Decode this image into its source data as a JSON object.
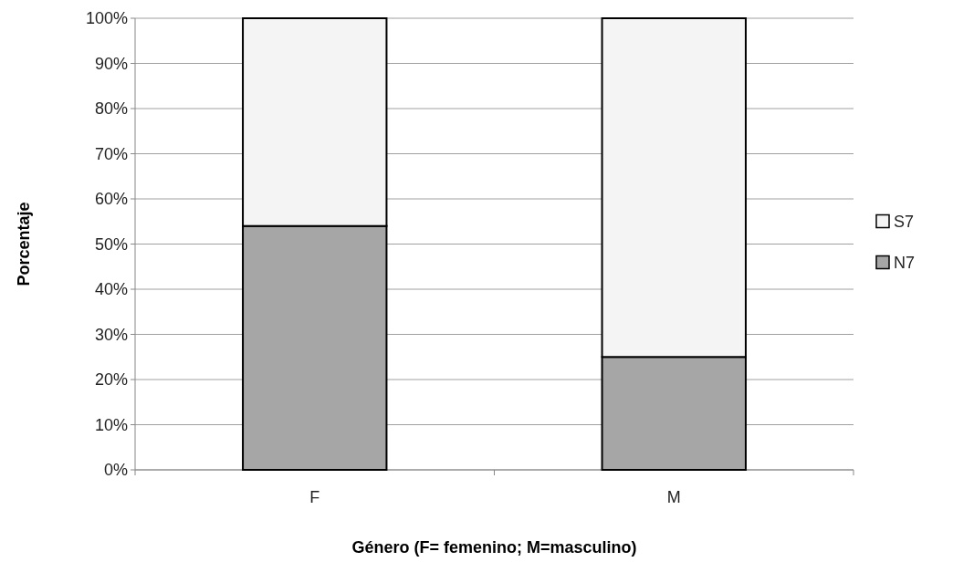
{
  "chart_data": {
    "type": "bar",
    "stacked": true,
    "xlabel": "Género (F= femenino; M=masculino)",
    "ylabel": "Porcentaje",
    "categories": [
      "F",
      "M"
    ],
    "series": [
      {
        "name": "N7",
        "color": "#a6a6a6",
        "values": [
          54,
          25
        ]
      },
      {
        "name": "S7",
        "color": "#f4f4f4",
        "values": [
          46,
          75
        ]
      }
    ],
    "ylim": [
      0,
      100
    ],
    "yticks": [
      {
        "value": 0,
        "label": "0%"
      },
      {
        "value": 10,
        "label": "10%"
      },
      {
        "value": 20,
        "label": "20%"
      },
      {
        "value": 30,
        "label": "30%"
      },
      {
        "value": 40,
        "label": "40%"
      },
      {
        "value": 50,
        "label": "50%"
      },
      {
        "value": 60,
        "label": "60%"
      },
      {
        "value": 70,
        "label": "70%"
      },
      {
        "value": 80,
        "label": "80%"
      },
      {
        "value": 90,
        "label": "90%"
      },
      {
        "value": 100,
        "label": "100%"
      }
    ],
    "grid": "y",
    "legend": "right"
  }
}
